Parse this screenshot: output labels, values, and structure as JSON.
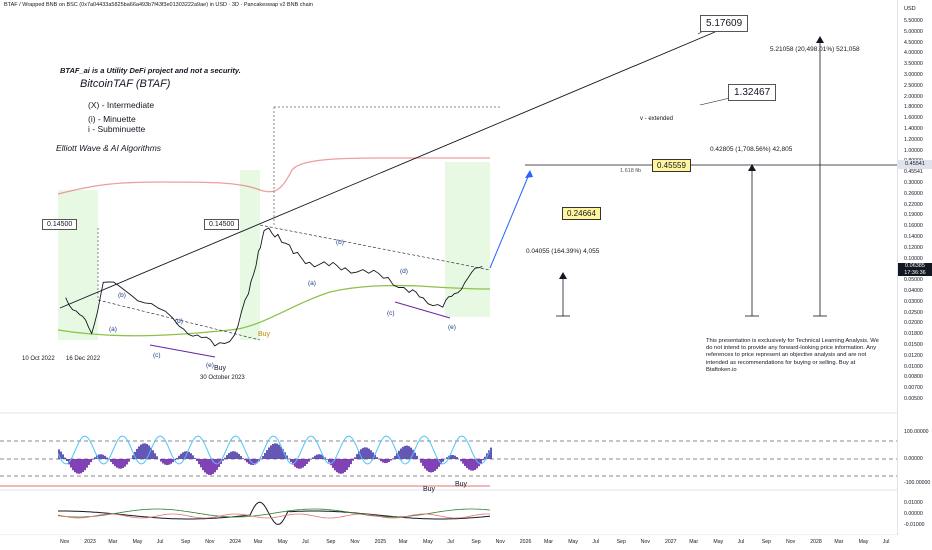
{
  "header": {
    "symbol_line": "BTAF / Wrapped BNB on BSC (0x7a04433a5825ba66a493b7f43f3e01303222a9ae) in USD · 3D · Pancakeswap v2 BNB chain"
  },
  "notes": {
    "disclaimer_title": "BTAF_ai is a Utility DeFi project and not a security.",
    "name": "BitcoinTAF (BTAF)",
    "legend1": "(X) - Intermediate",
    "legend2": "(i) - Minuette",
    "legend3": "i  - Subminuette",
    "method": "Elliott Wave & AI Algorithms",
    "extended": "v - extended",
    "fib": "1.618 fib",
    "disclaimer": "This presentation is exclusively for Technical Learning Analysis. We do not intend to provide any forward-looking price information. Any references to price represent an objective analysis and are not intended as recommendations for buying or selling. Buy at Btaftoken.io"
  },
  "boxes": {
    "t1": "5.17609",
    "t2": "1.32467",
    "t3": "0.45559",
    "t4": "0.24664",
    "p1": "0.14500",
    "p2": "0.14500"
  },
  "measures": {
    "m1": "5.21058 (20,498.01%) 521,058",
    "m2": "0.42805 (1,708.56%) 42,805",
    "m3": "0.04055 (164.39%) 4,055"
  },
  "events": {
    "d1": "10 Oct 2022",
    "d2": "16 Dec 2022",
    "d3": "30 October 2023",
    "buy": "Buy"
  },
  "wave_labels": {
    "a": "(a)",
    "b": "(b)",
    "c": "(c)",
    "d": "(d)",
    "e": "(e)"
  },
  "yaxis": {
    "currency": "USD",
    "current_price": "0.06385",
    "current_time": "17:36:36",
    "pinned_price": "0.45541",
    "ticks": [
      "5.50000",
      "5.00000",
      "4.50000",
      "4.00000",
      "3.50000",
      "3.00000",
      "2.50000",
      "2.00000",
      "1.80000",
      "1.60000",
      "1.40000",
      "1.20000",
      "1.00000",
      "0.80000",
      "0.45541",
      "0.30000",
      "0.26000",
      "0.22000",
      "0.19000",
      "0.16000",
      "0.14000",
      "0.12000",
      "0.10000",
      "0.07000",
      "0.05000",
      "0.04000",
      "0.03000",
      "0.02500",
      "0.02000",
      "0.01800",
      "0.01500",
      "0.01200",
      "0.01000",
      "0.00800",
      "0.00700",
      "0.00500"
    ],
    "osc1": [
      "100.00000",
      "0.00000",
      "-100.00000"
    ],
    "osc2": [
      "0.01000",
      "0.00000",
      "-0.01000"
    ]
  },
  "xaxis": {
    "ticks": [
      "Nov",
      "2023",
      "Mar",
      "May",
      "Jul",
      "Sep",
      "Nov",
      "2024",
      "Mar",
      "May",
      "Jul",
      "Sep",
      "Nov",
      "2025",
      "Mar",
      "May",
      "Jul",
      "Sep",
      "Nov",
      "2026",
      "Mar",
      "May",
      "Jul",
      "Sep",
      "Nov",
      "2027",
      "Mar",
      "May",
      "Jul",
      "Sep",
      "Nov",
      "2028",
      "Mar",
      "May",
      "Jul"
    ]
  },
  "colors": {
    "up": "#26a69a",
    "purple": "#6b21a8",
    "trend": "#2962ff",
    "band": "#e57373",
    "ma": "#8bc34a",
    "cyan": "#4fc3f7",
    "green_zone": "#d7f5d0"
  },
  "chart_data": {
    "type": "line",
    "title": "",
    "series": [
      {
        "name": "",
        "x": [
          "2022-10-10",
          "2022-11-15",
          "2022-12-16",
          "2023-01-15",
          "2023-03-10",
          "2023-05-20",
          "2023-07-30",
          "2023-09-15",
          "2023-10-30",
          "2023-12-20",
          "2024-01-25",
          "2024-02-20",
          "2024-03-10",
          "2024-04-10",
          "2024-05-20",
          "2024-07-01",
          "2024-08-20",
          "2024-10-01",
          "2024-12-01",
          "2025-01-20",
          "2025-03-15",
          "2025-04-20",
          "2025-06-10",
          "2025-07-10",
          "2025-08-15",
          "2025-09-20"
        ],
        "y": [
          0.032,
          0.022,
          0.0145,
          0.045,
          0.038,
          0.028,
          0.017,
          0.014,
          0.011,
          0.014,
          0.035,
          0.09,
          0.145,
          0.13,
          0.085,
          0.07,
          0.065,
          0.062,
          0.055,
          0.05,
          0.036,
          0.032,
          0.026,
          0.035,
          0.05,
          0.0638
        ]
      }
    ],
    "log_scale": true
  }
}
